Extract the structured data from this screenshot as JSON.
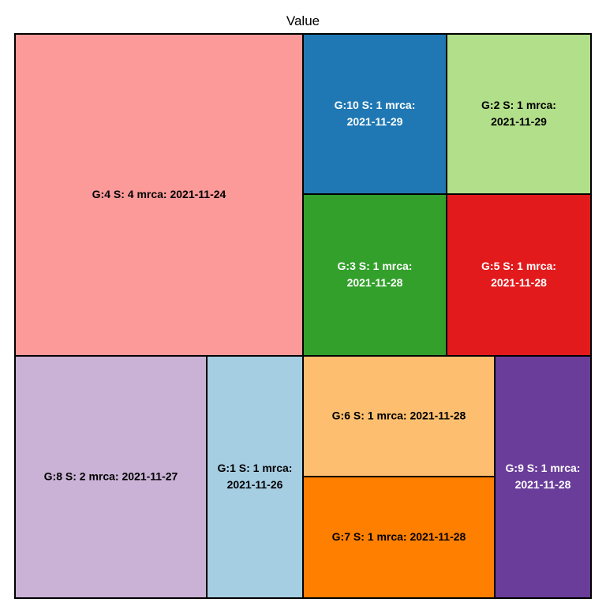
{
  "chart_data": {
    "type": "treemap",
    "title": "Value",
    "border_color": "#000000",
    "tiles": [
      {
        "name": "4",
        "label_lines": [
          "G:4 S: 4 mrca: 2021-11-24"
        ],
        "value": 4,
        "color": "#FB9A99",
        "text_color": "#000000"
      },
      {
        "name": "10",
        "label_lines": [
          "G:10 S: 1 mrca:",
          "2021-11-29"
        ],
        "value": 1,
        "color": "#1F78B4",
        "text_color": "#FFFFFF"
      },
      {
        "name": "2",
        "label_lines": [
          "G:2 S: 1 mrca:",
          "2021-11-29"
        ],
        "value": 1,
        "color": "#B2DF8A",
        "text_color": "#000000"
      },
      {
        "name": "3",
        "label_lines": [
          "G:3 S: 1 mrca:",
          "2021-11-28"
        ],
        "value": 1,
        "color": "#33A02C",
        "text_color": "#FFFFFF"
      },
      {
        "name": "5",
        "label_lines": [
          "G:5 S: 1 mrca:",
          "2021-11-28"
        ],
        "value": 1,
        "color": "#E31A1C",
        "text_color": "#FFFFFF"
      },
      {
        "name": "8",
        "label_lines": [
          "G:8 S: 2 mrca: 2021-11-27"
        ],
        "value": 2,
        "color": "#CAB2D6",
        "text_color": "#000000"
      },
      {
        "name": "1",
        "label_lines": [
          "G:1 S: 1 mrca:",
          "2021-11-26"
        ],
        "value": 1,
        "color": "#A6CEE3",
        "text_color": "#000000"
      },
      {
        "name": "6",
        "label_lines": [
          "G:6 S: 1 mrca: 2021-11-28"
        ],
        "value": 1,
        "color": "#FDBF6F",
        "text_color": "#000000"
      },
      {
        "name": "7",
        "label_lines": [
          "G:7 S: 1 mrca: 2021-11-28"
        ],
        "value": 1,
        "color": "#FF7F00",
        "text_color": "#000000"
      },
      {
        "name": "9",
        "label_lines": [
          "G:9 S: 1 mrca:",
          "2021-11-28"
        ],
        "value": 1,
        "color": "#6A3D9A",
        "text_color": "#FFFFFF"
      }
    ]
  }
}
